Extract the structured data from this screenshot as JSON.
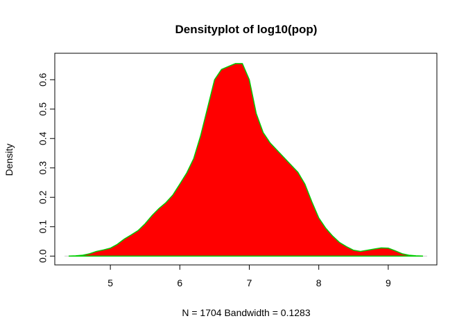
{
  "chart_data": {
    "type": "area",
    "title": "Densityplot of log10(pop)",
    "xlabel": "N = 1704   Bandwidth = 0.1283",
    "ylabel": "Density",
    "xlim": [
      4.2,
      9.7
    ],
    "ylim": [
      -0.03,
      0.69
    ],
    "x_ticks": [
      "5",
      "6",
      "7",
      "8",
      "9"
    ],
    "y_ticks": [
      "0.0",
      "0.1",
      "0.2",
      "0.3",
      "0.4",
      "0.5",
      "0.6"
    ],
    "fill_color": "#ff0000",
    "line_color": "#00cc00",
    "baseline_color": "#cccccc",
    "grid": false,
    "series": [
      {
        "x": [
          4.4,
          4.5,
          4.6,
          4.7,
          4.8,
          4.9,
          5.0,
          5.1,
          5.2,
          5.3,
          5.4,
          5.5,
          5.6,
          5.7,
          5.8,
          5.9,
          6.0,
          6.1,
          6.2,
          6.3,
          6.4,
          6.5,
          6.6,
          6.7,
          6.8,
          6.9,
          7.0,
          7.1,
          7.2,
          7.3,
          7.4,
          7.5,
          7.6,
          7.7,
          7.8,
          7.9,
          8.0,
          8.1,
          8.2,
          8.3,
          8.4,
          8.5,
          8.6,
          8.7,
          8.8,
          8.9,
          9.0,
          9.1,
          9.2,
          9.3,
          9.4,
          9.5
        ],
        "y": [
          0.0,
          0.001,
          0.003,
          0.008,
          0.016,
          0.021,
          0.027,
          0.04,
          0.058,
          0.072,
          0.087,
          0.11,
          0.138,
          0.162,
          0.182,
          0.208,
          0.245,
          0.283,
          0.332,
          0.41,
          0.505,
          0.6,
          0.635,
          0.645,
          0.655,
          0.655,
          0.6,
          0.485,
          0.42,
          0.385,
          0.36,
          0.335,
          0.31,
          0.285,
          0.245,
          0.185,
          0.13,
          0.095,
          0.068,
          0.046,
          0.032,
          0.02,
          0.016,
          0.02,
          0.024,
          0.028,
          0.027,
          0.018,
          0.008,
          0.003,
          0.001,
          0.0
        ]
      }
    ]
  }
}
